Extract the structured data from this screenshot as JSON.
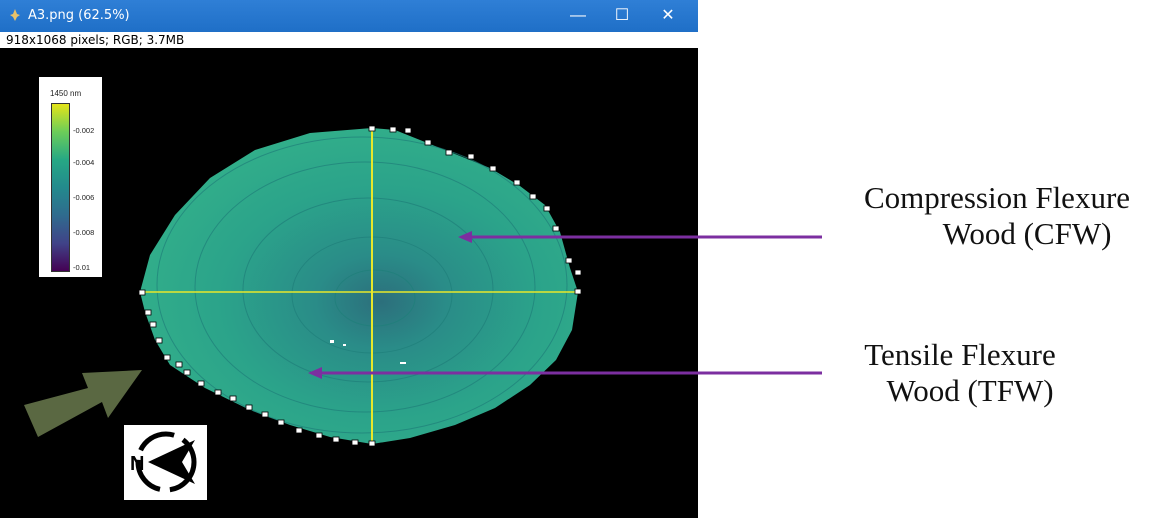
{
  "window": {
    "title": "A3.png (62.5%)",
    "info": "918x1068 pixels; RGB; 3.7MB",
    "controls": {
      "minimize": "—",
      "maximize": "☐",
      "close": "✕"
    }
  },
  "colorbar": {
    "unit_label": "1450 nm",
    "ticks": [
      "-0.002",
      "-0.004",
      "-0.006",
      "-0.008",
      "-0.01"
    ],
    "colors": [
      "#e4e419",
      "#6ccd59",
      "#26a884",
      "#238a8d",
      "#2f6b8e",
      "#404388",
      "#440154"
    ]
  },
  "labels": {
    "cfw_line1": "Compression Flexure",
    "cfw_line2": "Wood (CFW)",
    "tfw_line1": "Tensile Flexure",
    "tfw_line2": "Wood (TFW)"
  },
  "compass": {
    "letter": "N"
  },
  "colors": {
    "titlebar": "#1f6fc7",
    "wood": "#2a9c88",
    "arrow": "#7c2fa0",
    "direction_arrow": "#5a6842",
    "crosshair": "#e8e82a"
  }
}
